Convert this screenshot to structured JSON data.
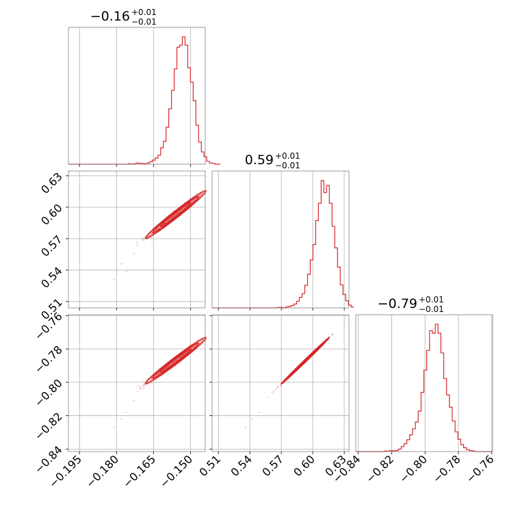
{
  "colors": {
    "series": "#d62728",
    "grid": "#b0b0b0",
    "frame": "#808080"
  },
  "chart_data": {
    "type": "corner",
    "grid": true,
    "parameters": [
      {
        "title_value": "−0.16",
        "title_plus": "+0.01",
        "title_minus": "−0.01",
        "range": [
          -0.1995,
          -0.144
        ],
        "ticks": [
          -0.195,
          -0.18,
          -0.165,
          -0.15
        ],
        "tick_labels": [
          "−0.195",
          "−0.180",
          "−0.165",
          "−0.150"
        ],
        "median": -0.156,
        "sigma": 0.0062
      },
      {
        "title_value": "0.59",
        "title_plus": "+0.01",
        "title_minus": "−0.01",
        "range": [
          0.504,
          0.6345
        ],
        "ticks": [
          0.51,
          0.54,
          0.57,
          0.6,
          0.63
        ],
        "tick_labels": [
          "0.51",
          "0.54",
          "0.57",
          "0.60",
          "0.63"
        ],
        "median": 0.593,
        "sigma": 0.0115
      },
      {
        "title_value": "−0.79",
        "title_plus": "+0.01",
        "title_minus": "−0.01",
        "range": [
          -0.8415,
          -0.7595
        ],
        "ticks": [
          -0.84,
          -0.82,
          -0.8,
          -0.78,
          -0.76
        ],
        "tick_labels": [
          "−0.84",
          "−0.82",
          "−0.80",
          "−0.78",
          "−0.76"
        ],
        "median": -0.787,
        "sigma": 0.007
      }
    ],
    "histograms": [
      {
        "param": 0,
        "bin_width": 0.0011,
        "bin_start": -0.1995,
        "counts": [
          0,
          0,
          0,
          0,
          0,
          0,
          0,
          0,
          0,
          0,
          0,
          0,
          0,
          0,
          0,
          0,
          0,
          0,
          0,
          0,
          0,
          0,
          1,
          0,
          1,
          3,
          2,
          2,
          1,
          3,
          6,
          10,
          15,
          22,
          40,
          56,
          90,
          135,
          180,
          232,
          285,
          290,
          310,
          290,
          235,
          200,
          155,
          95,
          54,
          30,
          18,
          7,
          3,
          2,
          0,
          0
        ]
      },
      {
        "param": 1,
        "bin_width": 0.0026,
        "bin_start": 0.504,
        "counts": [
          0,
          0,
          0,
          0,
          0,
          0,
          0,
          0,
          0,
          0,
          0,
          0,
          0,
          0,
          0,
          0,
          0,
          0,
          0,
          0,
          0,
          0,
          0,
          0,
          1,
          1,
          0,
          2,
          3,
          5,
          8,
          14,
          22,
          30,
          47,
          70,
          100,
          132,
          182,
          218,
          265,
          240,
          255,
          218,
          170,
          125,
          85,
          48,
          28,
          15,
          6,
          2
        ]
      },
      {
        "param": 2,
        "bin_width": 0.0017,
        "bin_start": -0.8415,
        "counts": [
          0,
          0,
          0,
          0,
          0,
          0,
          0,
          0,
          0,
          0,
          1,
          1,
          2,
          1,
          2,
          5,
          10,
          16,
          24,
          34,
          46,
          60,
          82,
          120,
          165,
          205,
          245,
          240,
          258,
          240,
          200,
          148,
          115,
          90,
          62,
          40,
          25,
          14,
          8,
          4,
          2,
          1,
          0,
          0,
          0,
          0,
          0,
          0
        ]
      }
    ],
    "pairs": [
      {
        "x_param": 0,
        "y_param": 1,
        "correlation": 0.985,
        "contour_levels": [
          0.39,
          0.68,
          0.86
        ],
        "sparse_points": [
          [
            -0.181,
            0.531
          ],
          [
            -0.176,
            0.539
          ],
          [
            -0.173,
            0.556
          ],
          [
            -0.178,
            0.546
          ]
        ]
      },
      {
        "x_param": 0,
        "y_param": 2,
        "correlation": 0.985,
        "contour_levels": [
          0.39,
          0.68,
          0.86
        ],
        "sparse_points": [
          [
            -0.181,
            -0.827
          ],
          [
            -0.176,
            -0.818
          ],
          [
            -0.173,
            -0.811
          ],
          [
            -0.178,
            -0.822
          ]
        ]
      },
      {
        "x_param": 1,
        "y_param": 2,
        "correlation": 0.998,
        "contour_levels": [
          0.39,
          0.68,
          0.86
        ],
        "sparse_points": [
          [
            0.536,
            -0.827
          ],
          [
            0.542,
            -0.822
          ],
          [
            0.549,
            -0.818
          ]
        ]
      }
    ]
  }
}
